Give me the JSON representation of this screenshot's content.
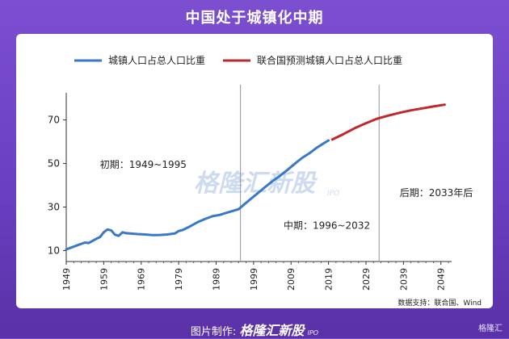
{
  "header": {
    "title": "中国处于城镇化中期"
  },
  "footer": {
    "made_by": "图片制作:",
    "logo": "格隆汇新股",
    "logo_sub": "IPO",
    "corner": "格隆汇"
  },
  "source": "数据支持：联合国、Wind",
  "watermark": {
    "text": "格隆汇新股",
    "sub": "IPO"
  },
  "chart_data": {
    "type": "line",
    "title": "",
    "xlabel": "",
    "ylabel": "",
    "xlim": [
      1949,
      2051
    ],
    "ylim": [
      5,
      78
    ],
    "yticks": [
      10,
      30,
      50,
      70
    ],
    "xticks": [
      1949,
      1959,
      1969,
      1979,
      1989,
      1999,
      2009,
      2019,
      2029,
      2039,
      2049
    ],
    "legend_position": "top",
    "grid": false,
    "series": [
      {
        "name": "城镇人口占总人口比重",
        "color": "#3a77c8",
        "x": [
          1949,
          1950,
          1952,
          1954,
          1955,
          1957,
          1958,
          1959,
          1960,
          1961,
          1962,
          1963,
          1964,
          1965,
          1966,
          1968,
          1970,
          1972,
          1974,
          1976,
          1978,
          1979,
          1980,
          1982,
          1984,
          1986,
          1988,
          1990,
          1992,
          1994,
          1995,
          1996,
          1998,
          2000,
          2002,
          2004,
          2006,
          2008,
          2010,
          2012,
          2014,
          2016,
          2018,
          2019
        ],
        "values": [
          10.6,
          11.2,
          12.5,
          13.7,
          13.5,
          15.4,
          16.2,
          18.4,
          19.7,
          19.3,
          17.3,
          16.8,
          18.4,
          18.0,
          17.9,
          17.6,
          17.4,
          17.1,
          17.2,
          17.4,
          17.9,
          19.0,
          19.4,
          21.1,
          23.0,
          24.5,
          25.8,
          26.4,
          27.5,
          28.5,
          29.0,
          30.5,
          33.4,
          36.2,
          39.1,
          41.8,
          44.3,
          47.0,
          49.9,
          52.6,
          54.8,
          57.4,
          59.6,
          60.6
        ]
      },
      {
        "name": "联合国预测城镇人口占总人口比重",
        "color": "#c0282d",
        "x": [
          2020,
          2023,
          2026,
          2029,
          2032,
          2035,
          2038,
          2041,
          2044,
          2047,
          2050
        ],
        "values": [
          61.0,
          63.5,
          66.2,
          68.5,
          70.6,
          72.0,
          73.3,
          74.4,
          75.3,
          76.2,
          77.0
        ]
      }
    ],
    "phase_lines": [
      1995.5,
      2032.5
    ],
    "annotations": [
      {
        "text": "初期：1949~1995",
        "x": 1958,
        "y": 48
      },
      {
        "text": "中期：1996~2032",
        "x": 2007,
        "y": 20
      },
      {
        "text": "后期：2033年后",
        "x": 2038,
        "y": 35
      }
    ]
  }
}
